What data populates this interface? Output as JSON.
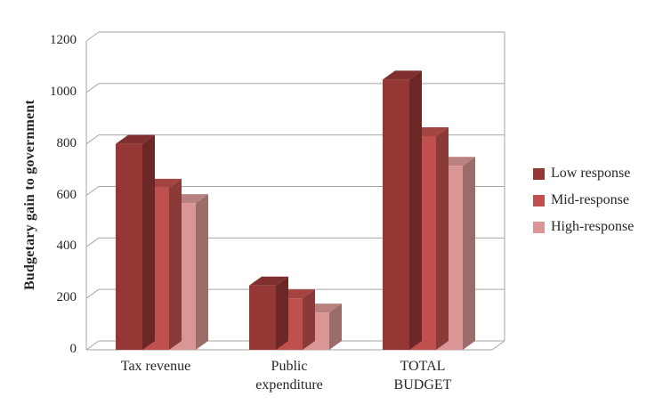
{
  "chart_data": {
    "type": "bar",
    "style": "3d-clustered-column",
    "title": "",
    "xlabel": "",
    "ylabel": "Budgetary gain to government",
    "categories": [
      "Tax revenue",
      "Public expenditure",
      "TOTAL BUDGET"
    ],
    "series": [
      {
        "name": "Low response",
        "color": "#953735",
        "values": [
          800,
          250,
          1050
        ]
      },
      {
        "name": "Mid-response",
        "color": "#C0504D",
        "values": [
          630,
          200,
          830
        ]
      },
      {
        "name": "High-response",
        "color": "#D99694",
        "values": [
          570,
          145,
          715
        ]
      }
    ],
    "ylim": [
      0,
      1200
    ],
    "yticks": [
      0,
      200,
      400,
      600,
      800,
      1000,
      1200
    ],
    "grid": true,
    "legend_position": "right"
  },
  "colors": {
    "gridline": "#A6A6A6",
    "text": "#262626"
  }
}
